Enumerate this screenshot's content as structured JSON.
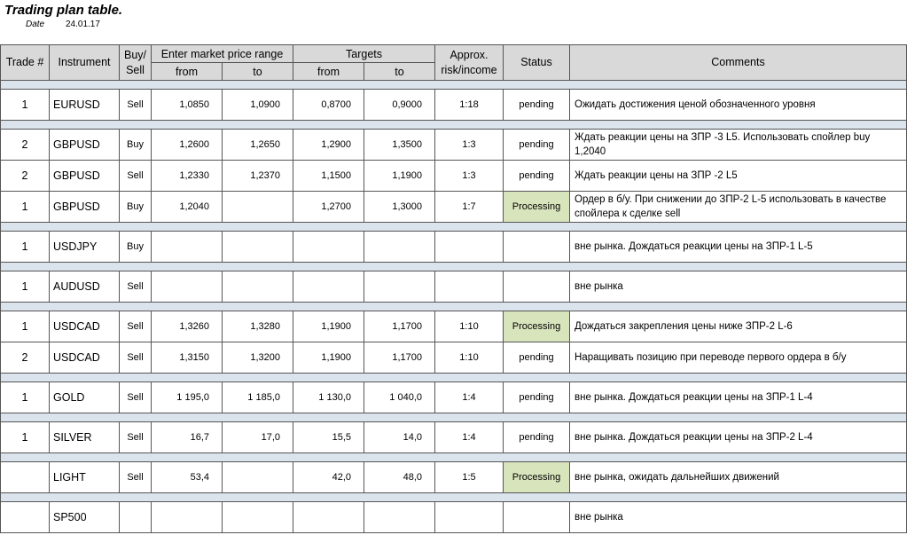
{
  "header": {
    "title": "Trading plan table.",
    "date_label": "Date",
    "date": "24.01.17"
  },
  "table": {
    "columns": [
      "Trade #",
      "Instrument",
      "Buy/ Sell",
      "Enter market price range",
      "Targets",
      "Approx. risk/income",
      "Status",
      "Comments"
    ],
    "subcolumns": [
      "from",
      "to",
      "from",
      "to"
    ],
    "groups": [
      [
        {
          "cells": [
            "1",
            "EURUSD",
            "Sell",
            "1,0850",
            "1,0900",
            "0,8700",
            "0,9000",
            "1:18",
            "pending",
            "Ожидать достижения ценой обозначенного уровня"
          ]
        }
      ],
      [
        {
          "cells": [
            "2",
            "GBPUSD",
            "Buy",
            "1,2600",
            "1,2650",
            "1,2900",
            "1,3500",
            "1:3",
            "pending",
            "Ждать реакции цены на ЗПР -3 L5. Использовать спойлер buy 1,2040"
          ]
        },
        {
          "cells": [
            "2",
            "GBPUSD",
            "Sell",
            "1,2330",
            "1,2370",
            "1,1500",
            "1,1900",
            "1:3",
            "pending",
            "Ждать реакции цены на ЗПР -2 L5"
          ]
        },
        {
          "cells": [
            "1",
            "GBPUSD",
            "Buy",
            "1,2040",
            null,
            "1,2700",
            "1,3000",
            "1:7",
            "Processing",
            "Ордер в б/у. При снижении до ЗПР-2 L-5 использовать в качестве спойлера к сделке sell"
          ],
          "highlight_color": "#d8e4bc"
        }
      ],
      [
        {
          "cells": [
            "1",
            "USDJPY",
            "Buy",
            null,
            null,
            null,
            null,
            null,
            null,
            "вне рынка. Дождаться реакции цены на ЗПР-1 L-5"
          ]
        }
      ],
      [
        {
          "cells": [
            "1",
            "AUDUSD",
            "Sell",
            null,
            null,
            null,
            null,
            null,
            null,
            "вне рынка"
          ]
        }
      ],
      [
        {
          "cells": [
            "1",
            "USDCAD",
            "Sell",
            "1,3260",
            "1,3280",
            "1,1900",
            "1,1700",
            "1:10",
            "Processing",
            "Дождаться закрепления цены ниже ЗПР-2 L-6"
          ],
          "highlight_color": "#d8e4bc"
        },
        {
          "cells": [
            "2",
            "USDCAD",
            "Sell",
            "1,3150",
            "1,3200",
            "1,1900",
            "1,1700",
            "1:10",
            "pending",
            "Наращивать позицию при переводе первого ордера в б/у"
          ]
        }
      ],
      [
        {
          "cells": [
            "1",
            "GOLD",
            "Sell",
            "1 195,0",
            "1 185,0",
            "1 130,0",
            "1 040,0",
            "1:4",
            "pending",
            "вне рынка. Дождаться реакции цены на ЗПР-1 L-4"
          ]
        }
      ],
      [
        {
          "cells": [
            "1",
            "SILVER",
            "Sell",
            "16,7",
            "17,0",
            "15,5",
            "14,0",
            "1:4",
            "pending",
            "вне рынка. Дождаться реакции цены на ЗПР-2 L-4"
          ]
        }
      ],
      [
        {
          "cells": [
            null,
            "LIGHT",
            "Sell",
            "53,4",
            null,
            "42,0",
            "48,0",
            "1:5",
            "Processing",
            "вне рынка, ожидать дальнейших движений"
          ],
          "highlight_color": "#d8e4bc"
        }
      ],
      [
        {
          "cells": [
            null,
            "SP500",
            null,
            null,
            null,
            null,
            null,
            null,
            null,
            "вне рынка"
          ]
        }
      ]
    ]
  }
}
